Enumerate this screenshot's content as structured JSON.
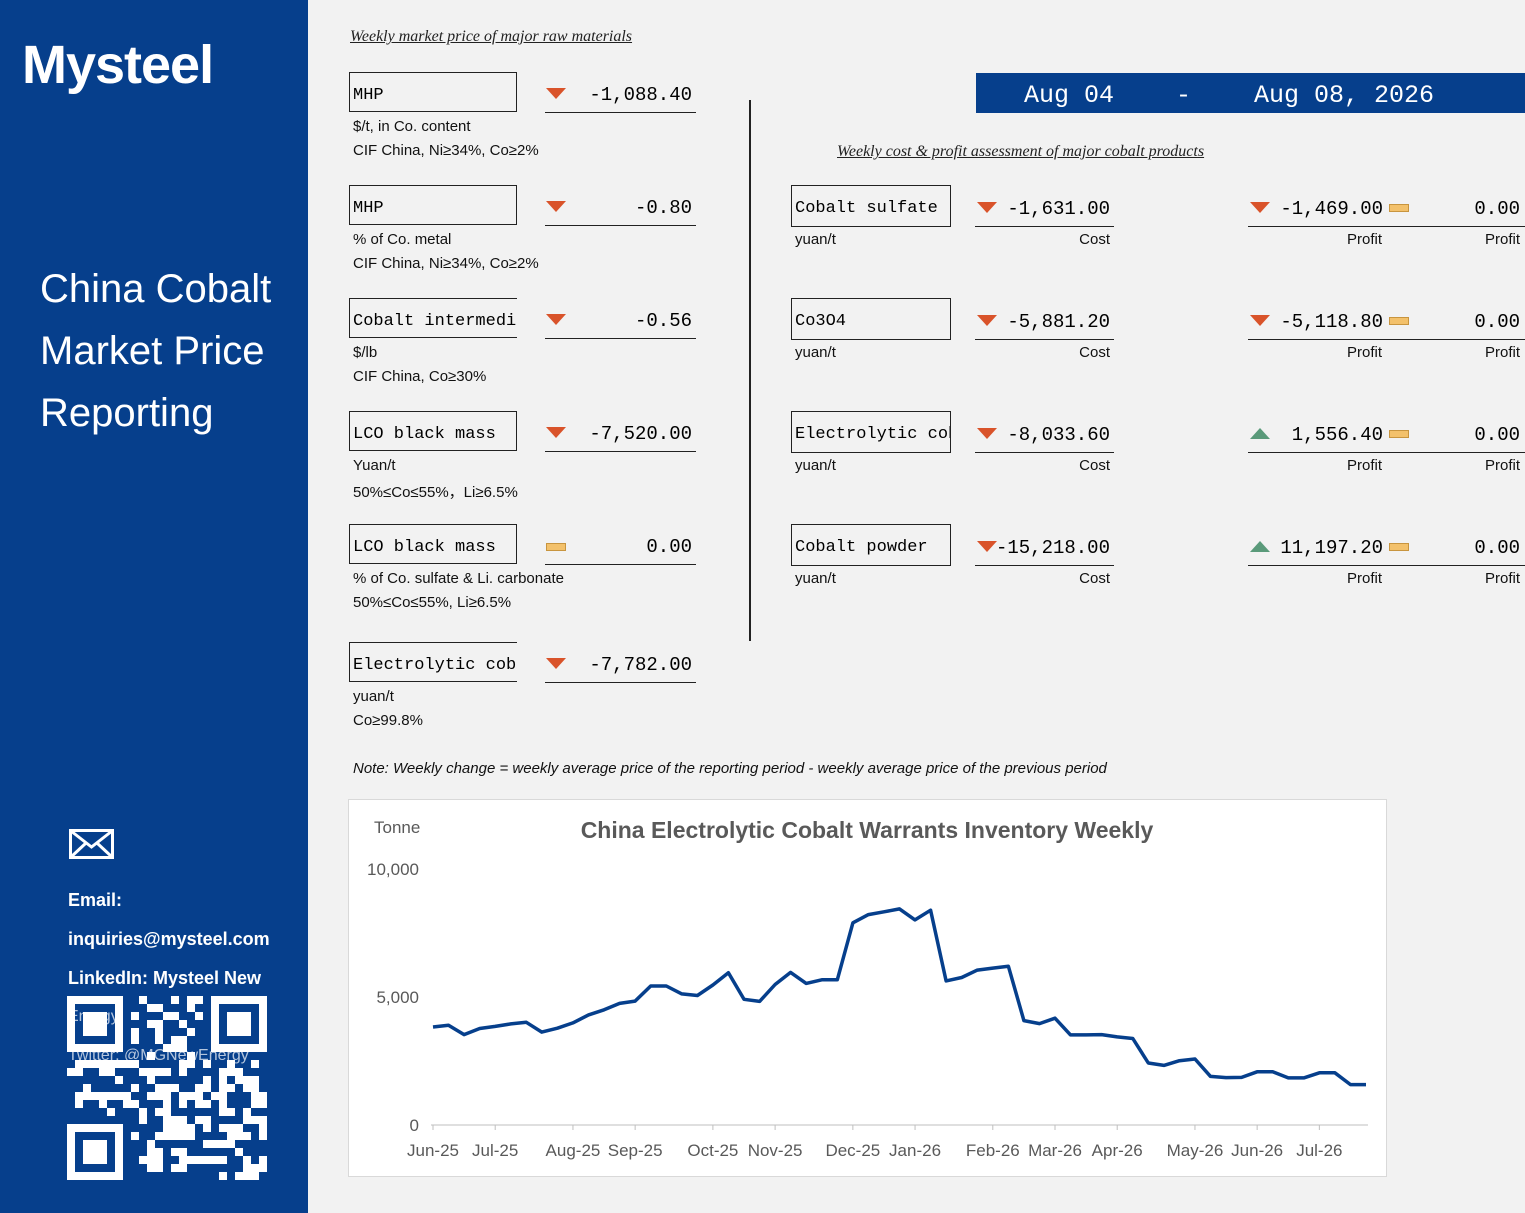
{
  "sidebar": {
    "logo": "Mysteel",
    "title": "China Cobalt Market Price Reporting",
    "email_label": "Email:",
    "email": "inquiries@mysteel.com",
    "linkedin": "LinkedIn: Mysteel New",
    "linkedin_cont": "Energy",
    "twitter": "Twitter: @MGNewEnergy"
  },
  "left_panel": {
    "heading": "Weekly market price of major raw materials",
    "items": [
      {
        "name": "MHP",
        "change": "-1,088.40",
        "direction": "down",
        "unit": "$/t, in Co. content",
        "spec": "CIF China, Ni≥34%, Co≥2%"
      },
      {
        "name": "MHP",
        "change": "-0.80",
        "direction": "down",
        "unit": "% of Co. metal",
        "spec": "CIF China, Ni≥34%, Co≥2%"
      },
      {
        "name": "Cobalt intermediate",
        "change": "-0.56",
        "direction": "down",
        "unit": "$/lb",
        "spec": "CIF China, Co≥30%"
      },
      {
        "name": "LCO black mass",
        "change": "-7,520.00",
        "direction": "down",
        "unit": "Yuan/t",
        "spec": "50%≤Co≤55%，Li≥6.5%"
      },
      {
        "name": "LCO black mass",
        "change": "0.00",
        "direction": "flat",
        "unit": "% of Co. sulfate & Li. carbonate",
        "spec": "50%≤Co≤55%, Li≥6.5%"
      },
      {
        "name": "Electrolytic cobalt slice",
        "change": "-7,782.00",
        "direction": "down",
        "unit": "yuan/t",
        "spec": "Co≥99.8%"
      }
    ]
  },
  "date_range": {
    "start": "Aug 04",
    "sep": "-",
    "end": "Aug 08, 2026"
  },
  "right_panel": {
    "heading": "Weekly cost & profit assessment of major cobalt products",
    "items": [
      {
        "name": "Cobalt sulfate",
        "unit": "yuan/t",
        "cost": "-1,631.00",
        "cost_dir": "down",
        "cost_label": "Cost",
        "profit": "-1,469.00",
        "profit_dir": "down",
        "profit_label": "Profit",
        "profit2": "0.00",
        "profit2_label": "Profit"
      },
      {
        "name": "Co3O4",
        "unit": "yuan/t",
        "cost": "-5,881.20",
        "cost_dir": "down",
        "cost_label": "Cost",
        "profit": "-5,118.80",
        "profit_dir": "down",
        "profit_label": "Profit",
        "profit2": "0.00",
        "profit2_label": "Profit"
      },
      {
        "name": "Electrolytic cobalt",
        "unit": "yuan/t",
        "cost": "-8,033.60",
        "cost_dir": "down",
        "cost_label": "Cost",
        "profit": "1,556.40",
        "profit_dir": "up",
        "profit_label": "Profit",
        "profit2": "0.00",
        "profit2_label": "Profit"
      },
      {
        "name": "Cobalt powder",
        "unit": "yuan/t",
        "cost": "-15,218.00",
        "cost_dir": "down",
        "cost_label": "Cost",
        "profit": "11,197.20",
        "profit_dir": "up",
        "profit_label": "Profit",
        "profit2": "0.00",
        "profit2_label": "Profit"
      }
    ]
  },
  "note": "Note: Weekly change = weekly average price of the reporting period - weekly average price of the previous period",
  "colors": {
    "brand": "#063f8c",
    "down": "#d9532a",
    "up": "#5a9a7a",
    "flat": "#f3c16b",
    "line": "#063f8c"
  },
  "chart_data": {
    "type": "line",
    "title": "China Electrolytic Cobalt Warrants Inventory Weekly",
    "ylabel": "Tonne",
    "ylim": [
      0,
      10000
    ],
    "yticks": [
      0,
      5000,
      10000
    ],
    "ytick_labels": [
      "0",
      "5,000",
      "10,000"
    ],
    "x_tick_labels": [
      "Jun-25",
      "Jul-25",
      "Aug-25",
      "Sep-25",
      "Oct-25",
      "Nov-25",
      "Dec-25",
      "Jan-26",
      "Feb-26",
      "Mar-26",
      "Apr-26",
      "May-26",
      "Jun-26",
      "Jul-26"
    ],
    "x_tick_index": [
      0,
      4,
      9,
      13,
      18,
      22,
      27,
      31,
      36,
      40,
      44,
      49,
      53,
      57
    ],
    "series": [
      {
        "values": [
          3830,
          3900,
          3530,
          3770,
          3850,
          3950,
          4010,
          3630,
          3780,
          3990,
          4300,
          4500,
          4750,
          4840,
          5430,
          5430,
          5120,
          5060,
          5470,
          5950,
          4910,
          4830,
          5490,
          5960,
          5530,
          5670,
          5670,
          7900,
          8220,
          8330,
          8440,
          8010,
          8390,
          5630,
          5760,
          6050,
          6130,
          6200,
          4080,
          3960,
          4170,
          3520,
          3520,
          3530,
          3440,
          3380,
          2420,
          2330,
          2510,
          2580,
          1900,
          1850,
          1860,
          2080,
          2080,
          1840,
          1840,
          2040,
          2040,
          1580,
          1580
        ]
      }
    ]
  }
}
